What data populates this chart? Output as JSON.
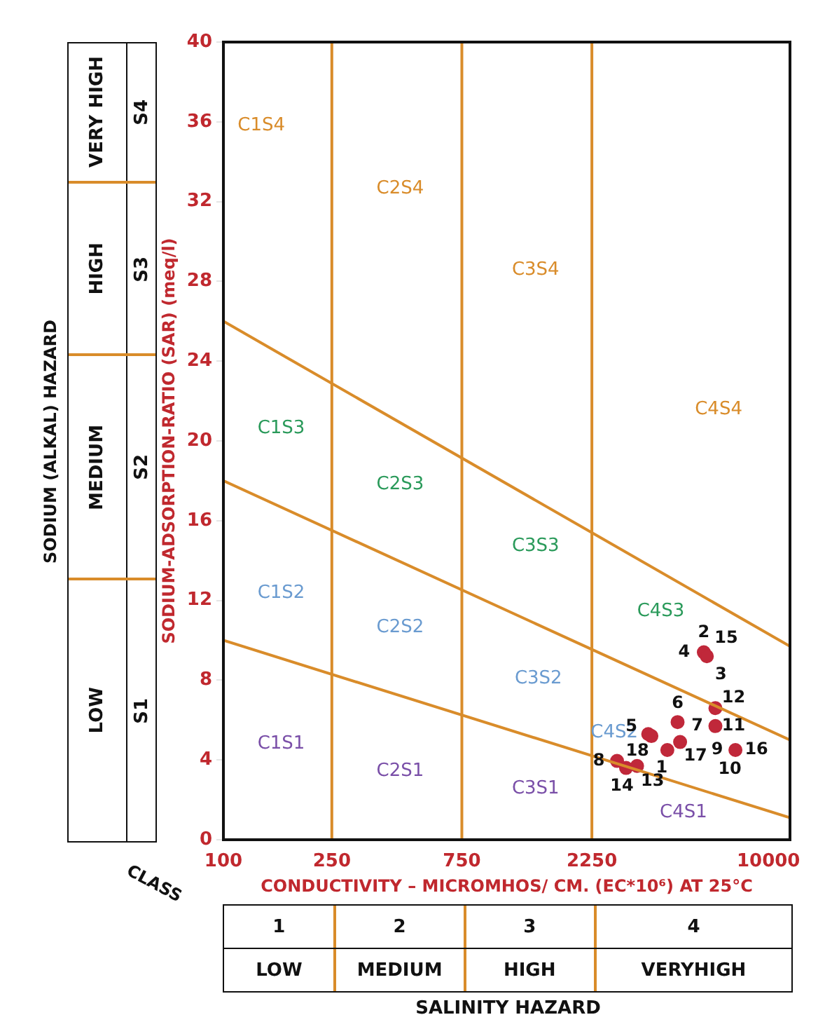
{
  "chart_data": {
    "type": "scatter",
    "xlabel": "CONDUCTIVITY – MICROMHOS/ CM. (EC*10⁶) AT 25°C",
    "ylabel": "SODIUM-ADSORPTION-RATIO (SAR) (meq/l)",
    "log": "x",
    "xlim": [
      100,
      12000
    ],
    "xticks": [
      100,
      250,
      750,
      2250,
      10000
    ],
    "ylim": [
      0,
      40
    ],
    "yticks": [
      0,
      4,
      8,
      12,
      16,
      20,
      24,
      28,
      32,
      36,
      40
    ],
    "grid": false,
    "series": [
      {
        "type": "line",
        "color": "#d98c2a",
        "x": [
          100,
          12000
        ],
        "values": [
          10,
          1.1
        ]
      },
      {
        "type": "line",
        "color": "#d98c2a",
        "x": [
          100,
          12000
        ],
        "values": [
          18,
          5
        ]
      },
      {
        "type": "line",
        "color": "#d98c2a",
        "x": [
          100,
          12000
        ],
        "values": [
          26,
          9.7
        ]
      },
      {
        "type": "scatter",
        "color": "#c0283a",
        "x": [
          5794,
          5943,
          6390,
          4642,
          6390,
          3622,
          3720,
          4257,
          4742,
          7568,
          2783,
          3004,
          3296
        ],
        "values": [
          9.4,
          9.2,
          6.6,
          5.9,
          5.7,
          5.3,
          5.2,
          4.5,
          4.9,
          4.5,
          3.95,
          3.6,
          3.7
        ]
      }
    ],
    "ref_lines": [
      {
        "axis": "x",
        "value": 250,
        "color": "#d98c2a"
      },
      {
        "axis": "x",
        "value": 750,
        "color": "#d98c2a"
      },
      {
        "axis": "x",
        "value": 2250,
        "color": "#d98c2a"
      }
    ],
    "annotations": [
      "SODIUM (ALKAL) HAZARD",
      "VERY HIGH",
      "HIGH",
      "MEDIUM",
      "LOW",
      "S4",
      "S3",
      "S2",
      "S1",
      "CLASS",
      "1",
      "2",
      "3",
      "4",
      "LOW",
      "MEDIUM",
      "HIGH",
      "VERYHIGH",
      "SALINITY HAZARD",
      "C1S4",
      "C2S4",
      "C3S4",
      "C4S4",
      "C1S3",
      "C2S3",
      "C3S3",
      "C4S3",
      "C1S2",
      "C2S2",
      "C3S2",
      "C4S2",
      "C1S1",
      "C2S1",
      "C3S1",
      "C4S1",
      {
        "text": "2",
        "x": 5794,
        "y": 9.4
      },
      {
        "text": "15",
        "x": 5794,
        "y": 9.4
      },
      {
        "text": "4",
        "x": 5794,
        "y": 9.4
      },
      {
        "text": "3",
        "x": 5943,
        "y": 9.2
      },
      {
        "text": "12",
        "x": 6390,
        "y": 6.6
      },
      {
        "text": "6",
        "x": 4642,
        "y": 5.9
      },
      {
        "text": "7",
        "x": 6390,
        "y": 5.7
      },
      {
        "text": "11",
        "x": 6390,
        "y": 5.7
      },
      {
        "text": "5",
        "x": 3622,
        "y": 5.3
      },
      {
        "text": "18",
        "x": 3720,
        "y": 5.2
      },
      {
        "text": "1",
        "x": 4257,
        "y": 4.5
      },
      {
        "text": "17",
        "x": 4742,
        "y": 4.9
      },
      {
        "text": "9",
        "x": 7568,
        "y": 4.5
      },
      {
        "text": "16",
        "x": 7568,
        "y": 4.5
      },
      {
        "text": "10",
        "x": 7568,
        "y": 4.5
      },
      {
        "text": "8",
        "x": 2783,
        "y": 3.95
      },
      {
        "text": "14",
        "x": 3004,
        "y": 3.6
      },
      {
        "text": "13",
        "x": 3296,
        "y": 3.7
      }
    ]
  }
}
